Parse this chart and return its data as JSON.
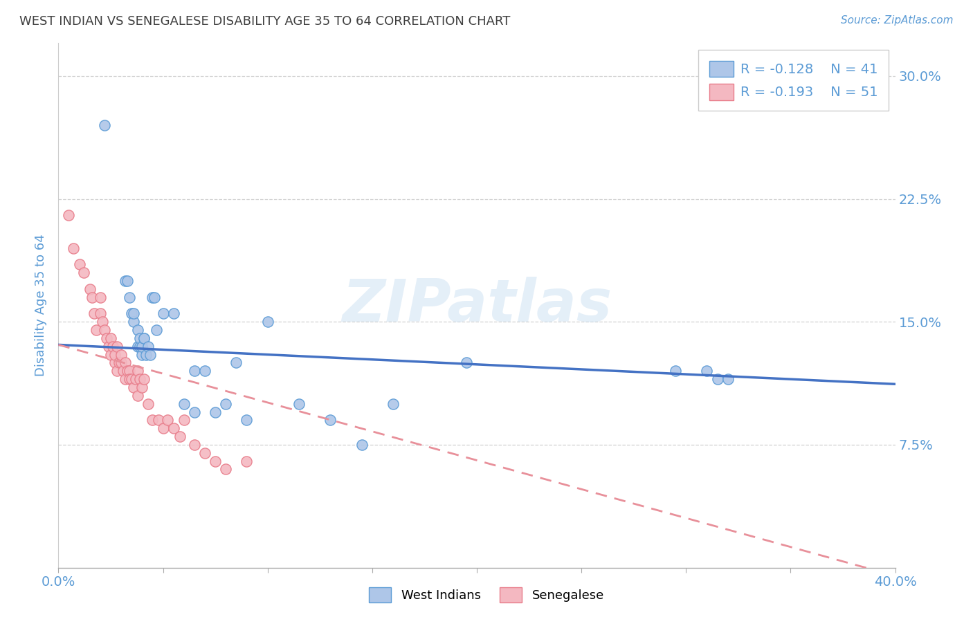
{
  "title": "WEST INDIAN VS SENEGALESE DISABILITY AGE 35 TO 64 CORRELATION CHART",
  "source": "Source: ZipAtlas.com",
  "ylabel": "Disability Age 35 to 64",
  "xlim": [
    0.0,
    0.4
  ],
  "ylim": [
    0.0,
    0.32
  ],
  "xticks": [
    0.0,
    0.05,
    0.1,
    0.15,
    0.2,
    0.25,
    0.3,
    0.35,
    0.4
  ],
  "yticks": [
    0.075,
    0.15,
    0.225,
    0.3
  ],
  "ytick_labels": [
    "7.5%",
    "15.0%",
    "22.5%",
    "30.0%"
  ],
  "xtick_labels_show": [
    "0.0%",
    "40.0%"
  ],
  "blue_color": "#aec6e8",
  "pink_color": "#f4b8c1",
  "blue_edge_color": "#5b9bd5",
  "pink_edge_color": "#e87c8a",
  "blue_line_color": "#4472c4",
  "pink_line_color": "#e8909a",
  "title_color": "#404040",
  "axis_label_color": "#5b9bd5",
  "watermark_text": "ZIPatlas",
  "legend_r_blue": "R = -0.128",
  "legend_n_blue": "N = 41",
  "legend_r_pink": "R = -0.193",
  "legend_n_pink": "N = 51",
  "west_indian_label": "West Indians",
  "senegalese_label": "Senegalese",
  "blue_scatter_x": [
    0.022,
    0.032,
    0.033,
    0.034,
    0.035,
    0.036,
    0.036,
    0.038,
    0.038,
    0.039,
    0.039,
    0.04,
    0.04,
    0.041,
    0.041,
    0.042,
    0.043,
    0.044,
    0.045,
    0.046,
    0.047,
    0.05,
    0.055,
    0.06,
    0.065,
    0.065,
    0.07,
    0.075,
    0.08,
    0.085,
    0.09,
    0.1,
    0.115,
    0.13,
    0.145,
    0.16,
    0.195,
    0.295,
    0.31,
    0.315,
    0.32
  ],
  "blue_scatter_y": [
    0.27,
    0.175,
    0.175,
    0.165,
    0.155,
    0.15,
    0.155,
    0.145,
    0.135,
    0.135,
    0.14,
    0.13,
    0.135,
    0.14,
    0.14,
    0.13,
    0.135,
    0.13,
    0.165,
    0.165,
    0.145,
    0.155,
    0.155,
    0.1,
    0.095,
    0.12,
    0.12,
    0.095,
    0.1,
    0.125,
    0.09,
    0.15,
    0.1,
    0.09,
    0.075,
    0.1,
    0.125,
    0.12,
    0.12,
    0.115,
    0.115
  ],
  "pink_scatter_x": [
    0.005,
    0.007,
    0.01,
    0.012,
    0.015,
    0.016,
    0.017,
    0.018,
    0.02,
    0.02,
    0.021,
    0.022,
    0.023,
    0.024,
    0.025,
    0.025,
    0.026,
    0.027,
    0.027,
    0.028,
    0.028,
    0.029,
    0.03,
    0.03,
    0.031,
    0.032,
    0.032,
    0.033,
    0.034,
    0.034,
    0.035,
    0.036,
    0.037,
    0.038,
    0.038,
    0.039,
    0.04,
    0.041,
    0.043,
    0.045,
    0.048,
    0.05,
    0.052,
    0.055,
    0.058,
    0.06,
    0.065,
    0.07,
    0.075,
    0.08,
    0.09
  ],
  "pink_scatter_y": [
    0.215,
    0.195,
    0.185,
    0.18,
    0.17,
    0.165,
    0.155,
    0.145,
    0.155,
    0.165,
    0.15,
    0.145,
    0.14,
    0.135,
    0.13,
    0.14,
    0.135,
    0.125,
    0.13,
    0.12,
    0.135,
    0.125,
    0.125,
    0.13,
    0.12,
    0.115,
    0.125,
    0.12,
    0.12,
    0.115,
    0.115,
    0.11,
    0.115,
    0.105,
    0.12,
    0.115,
    0.11,
    0.115,
    0.1,
    0.09,
    0.09,
    0.085,
    0.09,
    0.085,
    0.08,
    0.09,
    0.075,
    0.07,
    0.065,
    0.06,
    0.065
  ],
  "blue_trend_x": [
    0.0,
    0.4
  ],
  "blue_trend_y": [
    0.136,
    0.112
  ],
  "pink_trend_x": [
    0.0,
    0.4
  ],
  "pink_trend_y": [
    0.136,
    -0.005
  ]
}
